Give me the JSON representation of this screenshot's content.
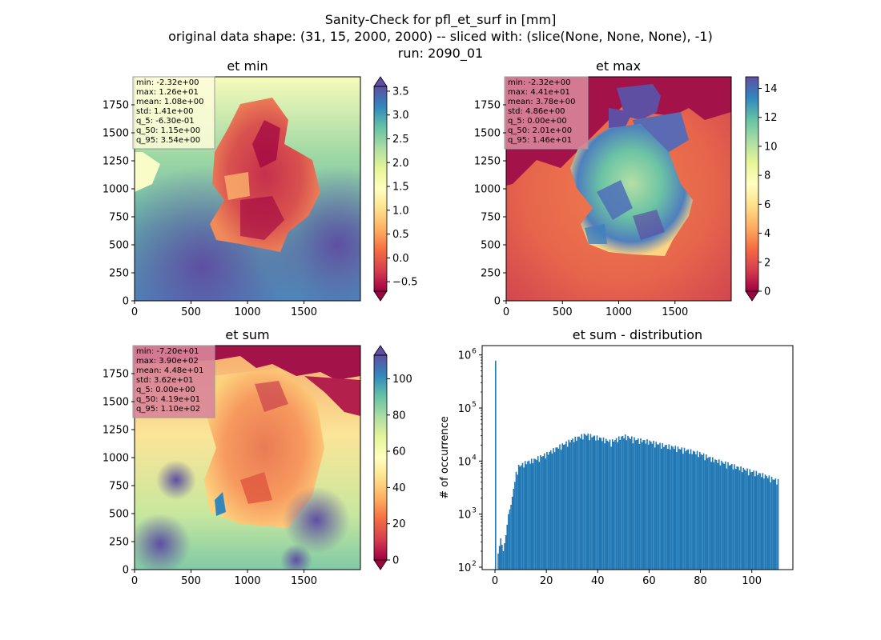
{
  "figure": {
    "title_lines": [
      "Sanity-Check for pfl_et_surf in [mm]",
      "original data shape: (31, 15, 2000, 2000) -- sliced with: (slice(None, None, None), -1)",
      "run: 2090_01"
    ]
  },
  "chart_data": [
    {
      "type": "heatmap",
      "id": "et_min",
      "title": "et min",
      "colormap": "Spectral",
      "xlim": [
        0,
        2000
      ],
      "ylim": [
        0,
        2000
      ],
      "x_ticks": [
        0,
        500,
        1000,
        1500
      ],
      "y_ticks": [
        0,
        250,
        500,
        750,
        1000,
        1250,
        1500,
        1750
      ],
      "colorbar": {
        "vmin": -0.7,
        "vmax": 3.6,
        "ticks": [
          -0.5,
          0.0,
          0.5,
          1.0,
          1.5,
          2.0,
          2.5,
          3.0,
          3.5
        ],
        "tick_labels": [
          "−0.5",
          "0.0",
          "0.5",
          "1.0",
          "1.5",
          "2.0",
          "2.5",
          "3.0",
          "3.5"
        ]
      },
      "stats": [
        "min: -2.32e+00",
        "max: 1.26e+01",
        "mean: 1.08e+00",
        "std: 1.41e+00",
        "q_5: -6.30e-01",
        "q_50: 1.15e+00",
        "q_95: 3.54e+00"
      ],
      "stats_box_color": "#fdfdd9"
    },
    {
      "type": "heatmap",
      "id": "et_max",
      "title": "et max",
      "colormap": "Spectral",
      "xlim": [
        0,
        2000
      ],
      "ylim": [
        0,
        2000
      ],
      "x_ticks": [
        0,
        500,
        1000,
        1500
      ],
      "y_ticks": [
        0,
        250,
        500,
        750,
        1000,
        1250,
        1500,
        1750
      ],
      "colorbar": {
        "vmin": 0,
        "vmax": 14.8,
        "ticks": [
          0,
          2,
          4,
          6,
          8,
          10,
          12,
          14
        ],
        "tick_labels": [
          "0",
          "2",
          "4",
          "6",
          "8",
          "10",
          "12",
          "14"
        ]
      },
      "stats": [
        "min: -2.32e+00",
        "max: 4.41e+01",
        "mean: 3.78e+00",
        "std: 4.86e+00",
        "q_5: 0.00e+00",
        "q_50: 2.01e+00",
        "q_95: 1.46e+01"
      ],
      "stats_box_color": "#d8869a"
    },
    {
      "type": "heatmap",
      "id": "et_sum",
      "title": "et sum",
      "colormap": "Spectral",
      "xlim": [
        0,
        2000
      ],
      "ylim": [
        0,
        2000
      ],
      "x_ticks": [
        0,
        500,
        1000,
        1500
      ],
      "y_ticks": [
        0,
        250,
        500,
        750,
        1000,
        1250,
        1500,
        1750
      ],
      "colorbar": {
        "vmin": 0,
        "vmax": 113,
        "ticks": [
          0,
          20,
          40,
          60,
          80,
          100
        ],
        "tick_labels": [
          "0",
          "20",
          "40",
          "60",
          "80",
          "100"
        ]
      },
      "stats": [
        "min: -7.20e+01",
        "max: 3.90e+02",
        "mean: 4.48e+01",
        "std: 3.62e+01",
        "q_5: 0.00e+00",
        "q_50: 4.19e+01",
        "q_95: 1.10e+02"
      ],
      "stats_box_color": "#d8869a"
    },
    {
      "type": "bar",
      "id": "et_sum_distribution",
      "title": "et sum - distribution",
      "xlabel": "",
      "ylabel": "# of occurrence",
      "yscale": "log",
      "xlim": [
        -5,
        116
      ],
      "ylim": [
        90,
        1500000
      ],
      "x_ticks": [
        0,
        20,
        40,
        60,
        80,
        100
      ],
      "y_ticks": [
        100,
        1000,
        10000,
        100000,
        1000000
      ],
      "y_tick_exponents": [
        "2",
        "3",
        "4",
        "5",
        "6"
      ],
      "bar_color": "#1f77b4",
      "x": [
        0,
        1,
        2,
        3,
        4,
        5,
        6,
        7,
        8,
        9,
        10,
        12,
        15,
        20,
        25,
        30,
        35,
        40,
        45,
        50,
        55,
        60,
        65,
        70,
        75,
        80,
        85,
        90,
        95,
        100,
        105,
        110
      ],
      "values": [
        780000,
        180,
        350,
        200,
        400,
        1000,
        1500,
        3000,
        5500,
        7500,
        8000,
        9000,
        10000,
        13000,
        18000,
        24000,
        30000,
        26000,
        22000,
        28000,
        24000,
        22000,
        19000,
        17000,
        15000,
        13000,
        10000,
        8500,
        7000,
        6000,
        5000,
        4000
      ]
    }
  ]
}
